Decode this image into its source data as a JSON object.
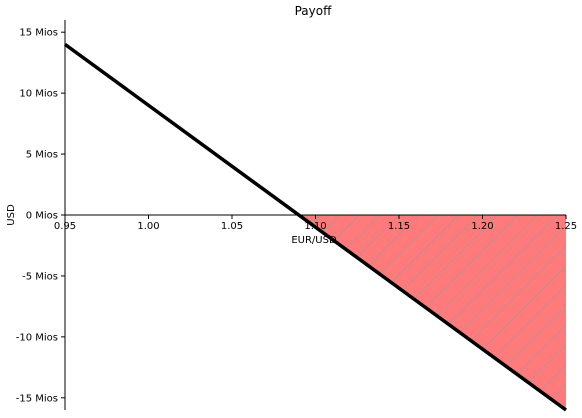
{
  "chart_data": {
    "type": "line",
    "title": "Payoff",
    "xlabel": "EUR/USD",
    "ylabel": "USD",
    "xlim": [
      0.95,
      1.25
    ],
    "ylim": [
      -16,
      16
    ],
    "x_ticks": [
      0.95,
      1.0,
      1.05,
      1.1,
      1.15,
      1.2,
      1.25
    ],
    "x_tick_labels": [
      "0.95",
      "1.00",
      "1.05",
      "1.10",
      "1.15",
      "1.20",
      "1.25"
    ],
    "y_ticks": [
      15,
      10,
      5,
      0,
      -5,
      -10,
      -15
    ],
    "y_tick_labels": [
      "15 Mios",
      "10 Mios",
      "5 Mios",
      "0 Mios",
      "-5 Mios",
      "-10 Mios",
      "-15 Mios"
    ],
    "series": [
      {
        "x": [
          0.95,
          1.25
        ],
        "y": [
          14,
          -16
        ],
        "color": "#000000"
      }
    ],
    "loss_region": {
      "x_start": 1.09,
      "x_end": 1.25,
      "fill_color": "#ff7a7a",
      "hatch_color": "#8f9aa8"
    },
    "grid": false,
    "legend": "none"
  }
}
